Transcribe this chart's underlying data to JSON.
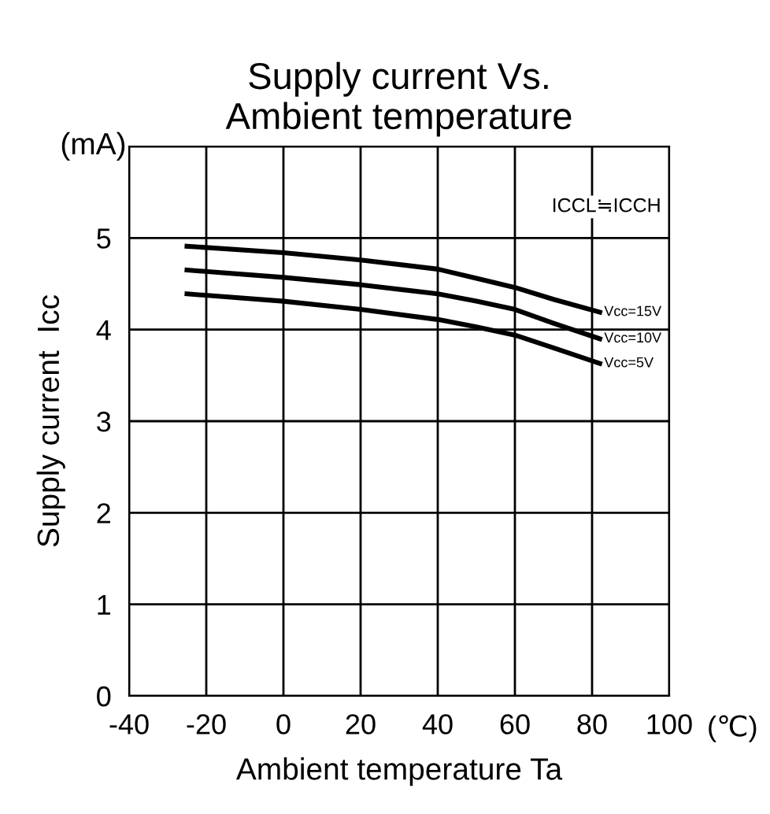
{
  "chart_data": {
    "type": "line",
    "title": "Supply current Vs.\nAmbient temperature",
    "xlabel": "Ambient temperature Ta",
    "ylabel": "Supply current  Icc",
    "annotations": [
      "(mA)",
      "(℃)",
      "ICCL≒ICCH"
    ],
    "series": [
      {
        "name": "Vcc=15V",
        "color": "#000000",
        "x": [
          -25,
          0,
          20,
          40,
          50,
          60,
          70,
          82
        ],
        "values": [
          4.91,
          4.84,
          4.76,
          4.66,
          4.56,
          4.46,
          4.33,
          4.19
        ]
      },
      {
        "name": "Vcc=10V",
        "color": "#000000",
        "x": [
          -25,
          0,
          20,
          40,
          50,
          60,
          70,
          82
        ],
        "values": [
          4.65,
          4.57,
          4.49,
          4.39,
          4.31,
          4.22,
          4.07,
          3.9
        ]
      },
      {
        "name": "Vcc=5V",
        "color": "#000000",
        "x": [
          -25,
          0,
          20,
          40,
          50,
          60,
          70,
          82
        ],
        "values": [
          4.39,
          4.31,
          4.22,
          4.11,
          4.03,
          3.94,
          3.8,
          3.63
        ]
      }
    ],
    "xlim": [
      -40,
      100
    ],
    "xticks": [
      -40,
      -20,
      0,
      20,
      40,
      60,
      80,
      100
    ],
    "ylim": [
      0,
      6
    ],
    "yticks": [
      0,
      1,
      2,
      3,
      4,
      5,
      {
        "value": 6,
        "label": null
      }
    ],
    "grid": true,
    "legend": false,
    "marker": "none",
    "line_style": "solid"
  }
}
